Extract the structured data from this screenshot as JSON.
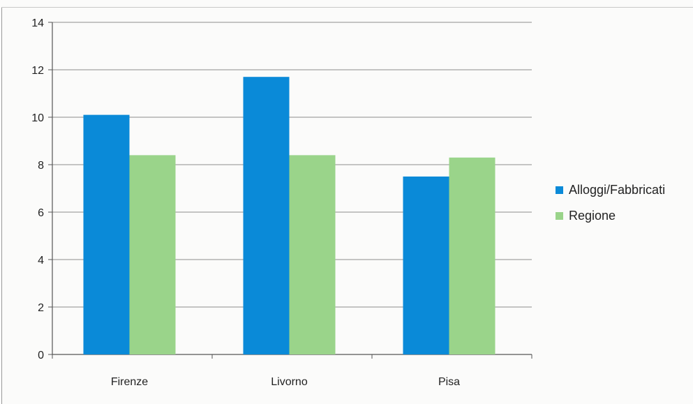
{
  "chart_data": {
    "type": "bar",
    "title": "",
    "xlabel": "",
    "ylabel": "",
    "categories": [
      "Firenze",
      "Livorno",
      "Pisa"
    ],
    "series": [
      {
        "name": "Alloggi/Fabbricati",
        "values": [
          10.1,
          11.7,
          7.5
        ],
        "color": "#0a8ad8"
      },
      {
        "name": "Regione",
        "values": [
          8.4,
          8.4,
          8.3
        ],
        "color": "#9ad48a"
      }
    ],
    "ylim": [
      0,
      14
    ],
    "yticks": [
      "0",
      "2",
      "4",
      "6",
      "8",
      "10",
      "12",
      "14"
    ],
    "grid": true,
    "legend_position": "right"
  }
}
